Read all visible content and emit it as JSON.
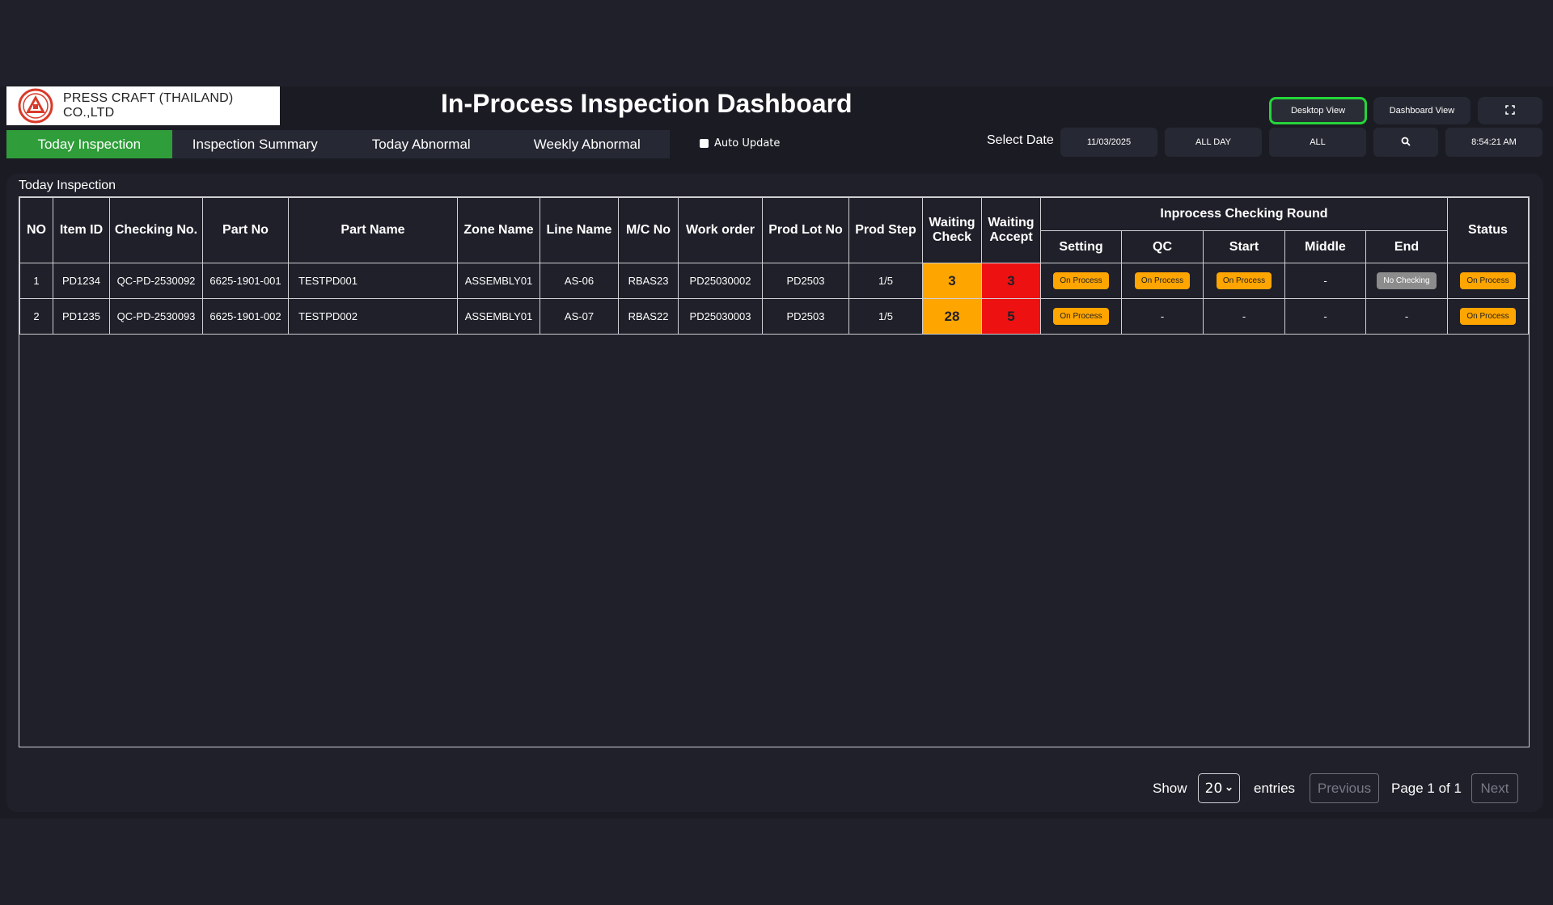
{
  "company": {
    "name": "PRESS CRAFT (THAILAND) CO.,LTD"
  },
  "page": {
    "title": "In-Process Inspection Dashboard"
  },
  "views": {
    "desktop": "Desktop View",
    "dashboard": "Dashboard View"
  },
  "tabs": [
    {
      "label": "Today Inspection",
      "active": true
    },
    {
      "label": "Inspection Summary",
      "active": false
    },
    {
      "label": "Today Abnormal",
      "active": false
    },
    {
      "label": "Weekly Abnormal",
      "active": false
    }
  ],
  "auto_update": {
    "label": "Auto Update",
    "checked": false
  },
  "filters": {
    "select_date_label": "Select Date",
    "date": "11/03/2025",
    "range": "ALL DAY",
    "scope": "ALL",
    "clock": "8:54:21 AM"
  },
  "section": {
    "title": "Today Inspection"
  },
  "table": {
    "headers": {
      "no": "NO",
      "item_id": "Item ID",
      "checking_no": "Checking No.",
      "part_no": "Part No",
      "part_name": "Part Name",
      "zone_name": "Zone Name",
      "line_name": "Line Name",
      "mc_no": "M/C No",
      "work_order": "Work order",
      "prod_lot_no": "Prod Lot No",
      "prod_step": "Prod Step",
      "waiting_check": "Waiting Check",
      "waiting_accept": "Waiting Accept",
      "round_group": "Inprocess Checking Round",
      "setting": "Setting",
      "qc": "QC",
      "start": "Start",
      "middle": "Middle",
      "end": "End",
      "status": "Status"
    },
    "rows": [
      {
        "no": "1",
        "item_id": "PD1234",
        "checking_no": "QC-PD-2530092",
        "part_no": "6625-1901-001",
        "part_name": "TESTPD001",
        "zone_name": "ASSEMBLY01",
        "line_name": "AS-06",
        "mc_no": "RBAS23",
        "work_order": "PD25030002",
        "prod_lot_no": "PD2503",
        "prod_step": "1/5",
        "waiting_check": "3",
        "waiting_accept": "3",
        "setting": "On Process",
        "qc": "On Process",
        "start": "On Process",
        "middle": "-",
        "end": "No Checking",
        "status": "On Process"
      },
      {
        "no": "2",
        "item_id": "PD1235",
        "checking_no": "QC-PD-2530093",
        "part_no": "6625-1901-002",
        "part_name": "TESTPD002",
        "zone_name": "ASSEMBLY01",
        "line_name": "AS-07",
        "mc_no": "RBAS22",
        "work_order": "PD25030003",
        "prod_lot_no": "PD2503",
        "prod_step": "1/5",
        "waiting_check": "28",
        "waiting_accept": "5",
        "setting": "On Process",
        "qc": "-",
        "start": "-",
        "middle": "-",
        "end": "-",
        "status": "On Process"
      }
    ]
  },
  "pagination": {
    "show": "Show",
    "entries_value": "20",
    "entries": "entries",
    "previous": "Previous",
    "page_info": "Page 1 of 1",
    "next": "Next"
  },
  "icons": {
    "search": "search-icon",
    "fullscreen": "fullscreen-icon",
    "logo": "company-logo"
  },
  "colors": {
    "active_tab": "#2f9e3a",
    "waiting_check": "#ffa500",
    "waiting_accept": "#ee1111",
    "badge": "#ffa500",
    "badge_grey": "#8c8c8c",
    "active_view_border": "#25d53a"
  }
}
